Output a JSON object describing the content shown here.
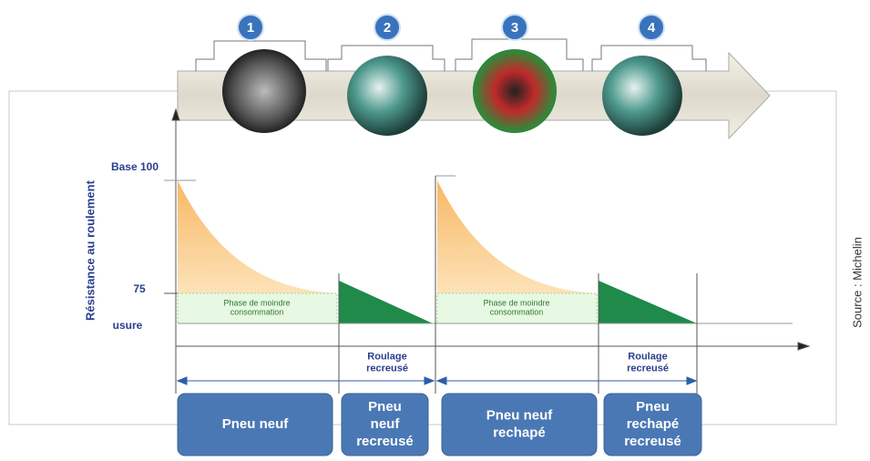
{
  "steps": [
    "1",
    "2",
    "3",
    "4"
  ],
  "y_axis_label": "Résistance au roulement",
  "levels": {
    "base": "Base 100",
    "mid": "75",
    "low": "usure"
  },
  "phases": [
    {
      "lines": [
        "Phase de moindre",
        "consommation"
      ]
    },
    {
      "lines": [
        "Phase de moindre",
        "consommation"
      ]
    }
  ],
  "regroove_labels": [
    {
      "lines": [
        "Roulage",
        "recreusé"
      ]
    },
    {
      "lines": [
        "Roulage",
        "recreusé"
      ]
    }
  ],
  "boxes": [
    {
      "lines": [
        "Pneu neuf"
      ]
    },
    {
      "lines": [
        "Pneu",
        "neuf",
        "recreusé"
      ]
    },
    {
      "lines": [
        "Pneu neuf",
        "rechapé"
      ]
    },
    {
      "lines": [
        "Pneu",
        "rechapé",
        "recreusé"
      ]
    }
  ],
  "source": "Source : Michelin"
}
